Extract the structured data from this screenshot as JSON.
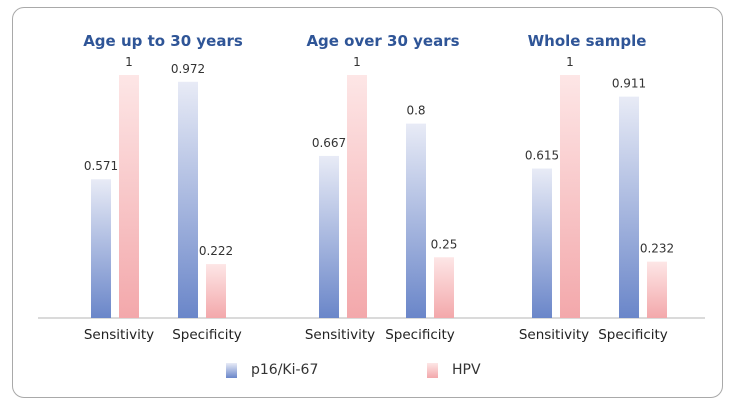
{
  "chart_data": {
    "type": "bar",
    "legend_position": "bottom",
    "grid": false,
    "ylim": [
      0,
      1.05
    ],
    "series": [
      {
        "name": "p16/Ki-67",
        "color_top": "#e8ebf6",
        "color_bottom": "#6a86c9"
      },
      {
        "name": "HPV",
        "color_top": "#fde6e6",
        "color_bottom": "#f3a8ab"
      }
    ],
    "panels": [
      {
        "title": "Age up to 30 years",
        "categories": [
          "Sensitivity",
          "Specificity"
        ],
        "values": [
          [
            0.571,
            1
          ],
          [
            0.972,
            0.222
          ]
        ],
        "value_labels": [
          [
            "0.571",
            "1"
          ],
          [
            "0.972",
            "0.222"
          ]
        ]
      },
      {
        "title": "Age over 30 years",
        "categories": [
          "Sensitivity",
          "Specificity"
        ],
        "values": [
          [
            0.667,
            1
          ],
          [
            0.8,
            0.25
          ]
        ],
        "value_labels": [
          [
            "0.667",
            "1"
          ],
          [
            "0.8",
            "0.25"
          ]
        ]
      },
      {
        "title": "Whole sample",
        "categories": [
          "Sensitivity",
          "Specificity"
        ],
        "values": [
          [
            0.615,
            1
          ],
          [
            0.911,
            0.232
          ]
        ],
        "value_labels": [
          [
            "0.615",
            "1"
          ],
          [
            "0.911",
            "0.232"
          ]
        ]
      }
    ],
    "title_color": "#2f5597"
  }
}
